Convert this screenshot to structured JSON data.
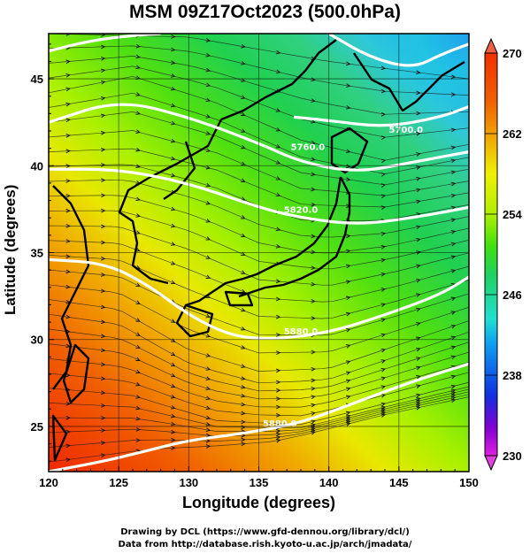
{
  "title": "MSM 09Z17Oct2023 (500.0hPa)",
  "xlabel": "Longitude (degrees)",
  "ylabel": "Latitude  (degrees)",
  "credits": {
    "line1": "Drawing by DCL (https://www.gfd-dennou.org/library/dcl/)",
    "line2": "Data from http://database.rish.kyoto-u.ac.jp/arch/jmadata/"
  },
  "chart_data": {
    "type": "heatmap",
    "x_ticks": [
      "120",
      "125",
      "130",
      "135",
      "140",
      "145",
      "150"
    ],
    "y_ticks": [
      "25",
      "30",
      "35",
      "40",
      "45"
    ],
    "xlim": [
      120,
      150
    ],
    "ylim": [
      22.4,
      47.6
    ],
    "colorbar": {
      "ticks": [
        "270",
        "262",
        "254",
        "246",
        "238",
        "230"
      ],
      "min": 230,
      "max": 270,
      "colors": [
        "#e020e0",
        "#8000d0",
        "#1030e0",
        "#10a0f0",
        "#20e0d0",
        "#20d060",
        "#40e010",
        "#b0f000",
        "#f0f000",
        "#f0b000",
        "#f06000",
        "#f03000"
      ]
    },
    "contours": [
      {
        "label": "5700.0",
        "points": [
          [
            137.5,
            42.8
          ],
          [
            140,
            42.6
          ],
          [
            144,
            42.2
          ],
          [
            148,
            42.8
          ],
          [
            150,
            43.4
          ]
        ],
        "label_at": [
          145.5,
          41.9
        ]
      },
      {
        "label": "5760.0",
        "points": [
          [
            120,
            42.5
          ],
          [
            125,
            43.8
          ],
          [
            130,
            42.8
          ],
          [
            135,
            41.3
          ],
          [
            138,
            40.2
          ],
          [
            142,
            39.6
          ],
          [
            146,
            40.2
          ],
          [
            150,
            40.8
          ]
        ],
        "label_at": [
          138.5,
          40.9
        ]
      },
      {
        "label": "5820.0",
        "points": [
          [
            120,
            39.8
          ],
          [
            125,
            39.8
          ],
          [
            130,
            39.0
          ],
          [
            135,
            37.6
          ],
          [
            138,
            37.0
          ],
          [
            142,
            36.6
          ],
          [
            146,
            37.0
          ],
          [
            150,
            37.6
          ]
        ],
        "label_at": [
          138,
          37.3
        ]
      },
      {
        "label": "5880.0",
        "points": [
          [
            120,
            34.6
          ],
          [
            124,
            34.4
          ],
          [
            127,
            33.2
          ],
          [
            130,
            31.4
          ],
          [
            133,
            30.2
          ],
          [
            136,
            30.0
          ],
          [
            140,
            30.4
          ],
          [
            144,
            31.4
          ],
          [
            148,
            32.6
          ],
          [
            150,
            33.6
          ]
        ],
        "label_at": [
          138,
          30.3
        ]
      },
      {
        "label": "5880.0",
        "points": [
          [
            120,
            22.4
          ],
          [
            124,
            23.0
          ],
          [
            127,
            23.6
          ],
          [
            130,
            24.2
          ],
          [
            134,
            24.6
          ],
          [
            138,
            25.2
          ],
          [
            142,
            26.4
          ],
          [
            146,
            27.6
          ],
          [
            150,
            28.6
          ]
        ],
        "label_at": [
          136.5,
          25.0
        ]
      },
      {
        "label": "",
        "points": [
          [
            140,
            47.6
          ],
          [
            143,
            46.2
          ],
          [
            146,
            45.6
          ],
          [
            148,
            46.4
          ],
          [
            150,
            47.0
          ]
        ],
        "label_at": null
      },
      {
        "label": "",
        "points": [
          [
            120,
            46.6
          ],
          [
            123,
            47.2
          ],
          [
            126,
            47.5
          ],
          [
            128,
            47.6
          ]
        ],
        "label_at": null
      }
    ]
  }
}
